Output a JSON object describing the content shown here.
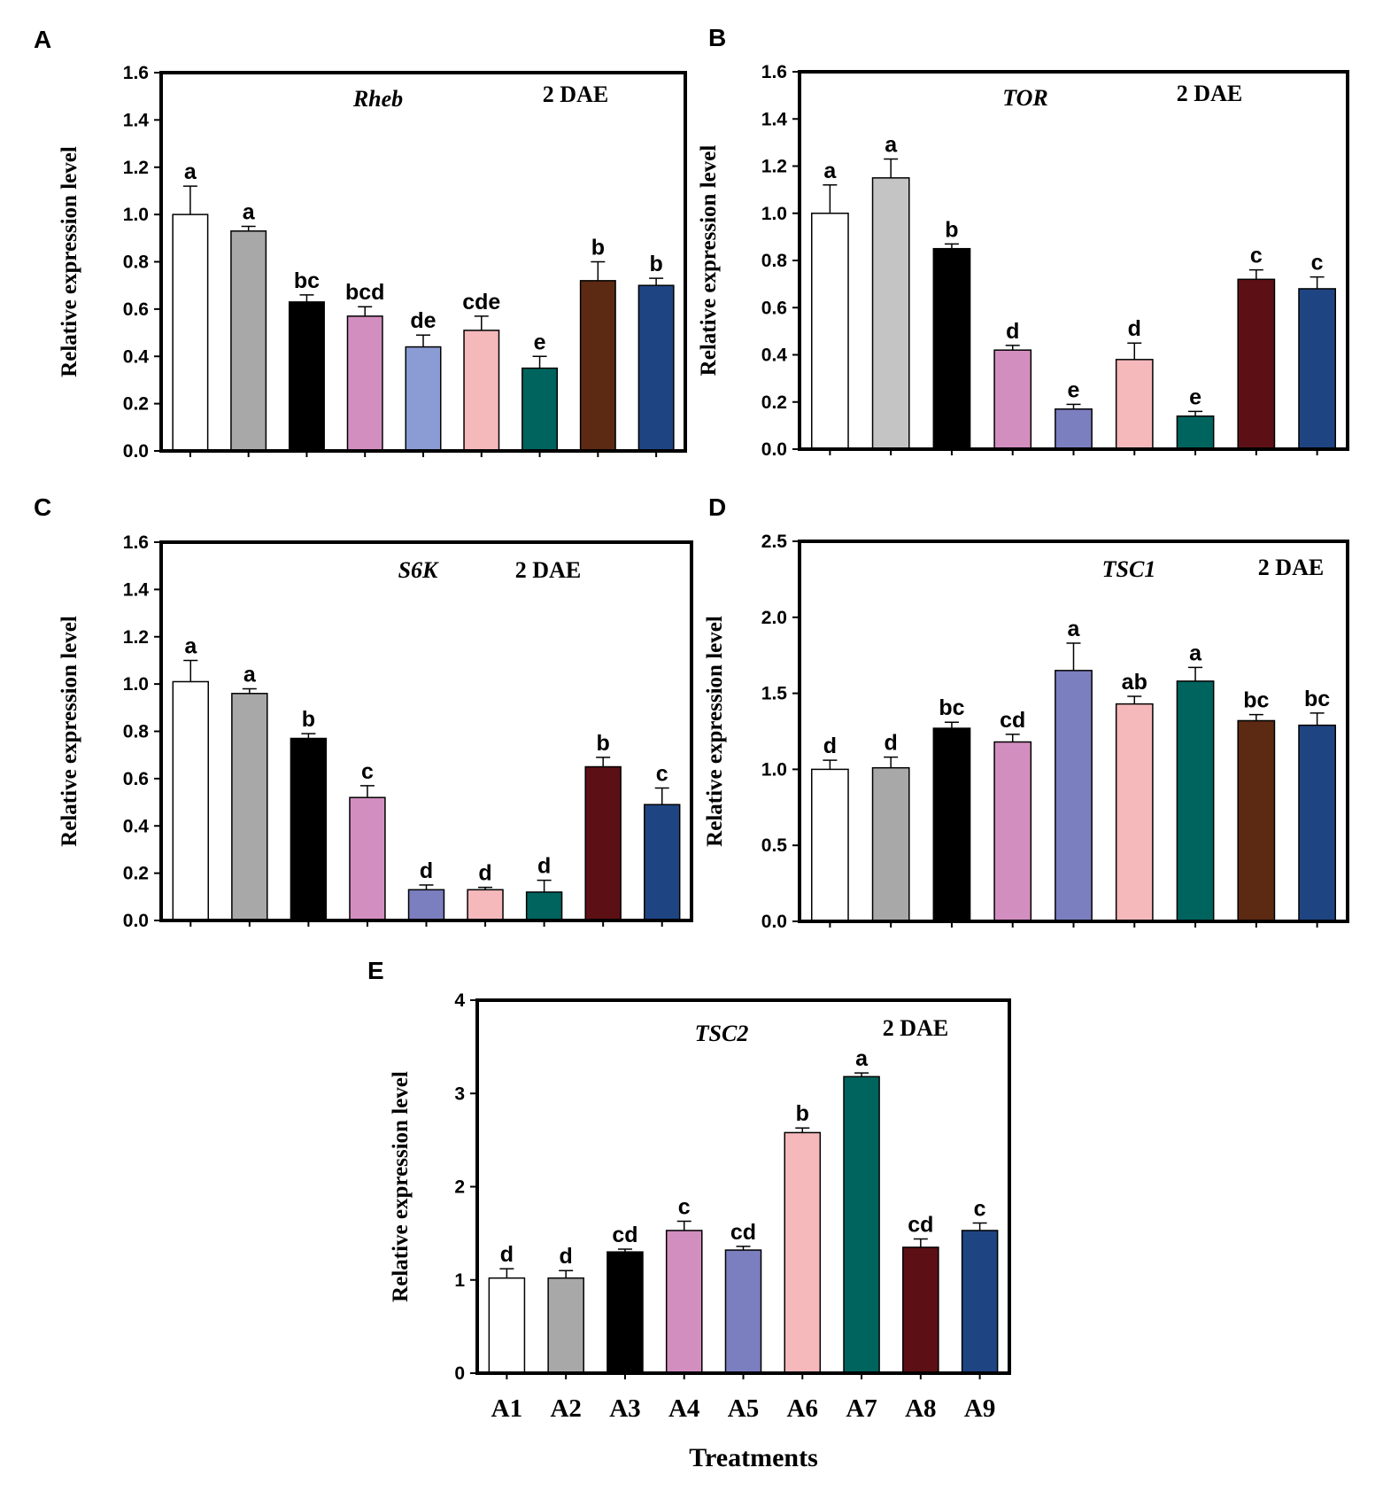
{
  "xlabel": "Treatments",
  "categories": [
    "A1",
    "A2",
    "A3",
    "A4",
    "A5",
    "A6",
    "A7",
    "A8",
    "A9"
  ],
  "chart_data": [
    {
      "type": "bar",
      "panel": "A",
      "title": "Rheb",
      "subtitle": "2 DAE",
      "ylabel": "Relative expression level",
      "ylim": [
        0,
        1.6
      ],
      "yticks": [
        "0.0",
        "0.2",
        "0.4",
        "0.6",
        "0.8",
        "1.0",
        "1.2",
        "1.4",
        "1.6"
      ],
      "values": [
        1.0,
        0.93,
        0.63,
        0.57,
        0.44,
        0.51,
        0.35,
        0.72,
        0.7
      ],
      "errors": [
        0.12,
        0.02,
        0.03,
        0.04,
        0.05,
        0.06,
        0.05,
        0.08,
        0.03
      ],
      "letters": [
        "a",
        "a",
        "bc",
        "bcd",
        "de",
        "cde",
        "e",
        "b",
        "b"
      ],
      "colors": [
        "#ffffff",
        "#a8a8a8",
        "#000000",
        "#d38ec0",
        "#8b9cd4",
        "#f5b8bb",
        "#00645e",
        "#5c2a12",
        "#1f4482"
      ]
    },
    {
      "type": "bar",
      "panel": "B",
      "title": "TOR",
      "subtitle": "2 DAE",
      "ylabel": "Relative expression level",
      "ylim": [
        0,
        1.6
      ],
      "yticks": [
        "0.0",
        "0.2",
        "0.4",
        "0.6",
        "0.8",
        "1.0",
        "1.2",
        "1.4",
        "1.6"
      ],
      "values": [
        1.0,
        1.15,
        0.85,
        0.42,
        0.17,
        0.38,
        0.14,
        0.72,
        0.68
      ],
      "errors": [
        0.12,
        0.08,
        0.02,
        0.02,
        0.02,
        0.07,
        0.02,
        0.04,
        0.05
      ],
      "letters": [
        "a",
        "a",
        "b",
        "d",
        "e",
        "d",
        "e",
        "c",
        "c"
      ],
      "colors": [
        "#ffffff",
        "#c4c4c4",
        "#000000",
        "#d38ec0",
        "#7b7fc0",
        "#f5b8bb",
        "#00645e",
        "#5c1015",
        "#1f4482"
      ]
    },
    {
      "type": "bar",
      "panel": "C",
      "title": "S6K",
      "subtitle": "2 DAE",
      "ylabel": "Relative expression level",
      "ylim": [
        0,
        1.6
      ],
      "yticks": [
        "0.0",
        "0.2",
        "0.4",
        "0.6",
        "0.8",
        "1.0",
        "1.2",
        "1.4",
        "1.6"
      ],
      "values": [
        1.01,
        0.96,
        0.77,
        0.52,
        0.13,
        0.13,
        0.12,
        0.65,
        0.49
      ],
      "errors": [
        0.09,
        0.02,
        0.02,
        0.05,
        0.02,
        0.01,
        0.05,
        0.04,
        0.07
      ],
      "letters": [
        "a",
        "a",
        "b",
        "c",
        "d",
        "d",
        "d",
        "b",
        "c"
      ],
      "colors": [
        "#ffffff",
        "#a8a8a8",
        "#000000",
        "#d38ec0",
        "#7b7fc0",
        "#f5b8bb",
        "#00645e",
        "#5c1015",
        "#1f4482"
      ]
    },
    {
      "type": "bar",
      "panel": "D",
      "title": "TSC1",
      "subtitle": "2 DAE",
      "ylabel": "Relative expression level",
      "ylim": [
        0,
        2.5
      ],
      "yticks": [
        "0.0",
        "0.5",
        "1.0",
        "1.5",
        "2.0",
        "2.5"
      ],
      "values": [
        1.0,
        1.01,
        1.27,
        1.18,
        1.65,
        1.43,
        1.58,
        1.32,
        1.29
      ],
      "errors": [
        0.06,
        0.07,
        0.04,
        0.05,
        0.18,
        0.05,
        0.09,
        0.04,
        0.08
      ],
      "letters": [
        "d",
        "d",
        "bc",
        "cd",
        "a",
        "ab",
        "a",
        "bc",
        "bc"
      ],
      "colors": [
        "#ffffff",
        "#a8a8a8",
        "#000000",
        "#d38ec0",
        "#7b7fc0",
        "#f5b8bb",
        "#00645e",
        "#5c2a12",
        "#1f4482"
      ]
    },
    {
      "type": "bar",
      "panel": "E",
      "title": "TSC2",
      "subtitle": "2 DAE",
      "ylabel": "Relative expression level",
      "ylim": [
        0,
        4
      ],
      "yticks": [
        "0",
        "1",
        "2",
        "3",
        "4"
      ],
      "values": [
        1.02,
        1.02,
        1.3,
        1.53,
        1.32,
        2.58,
        3.18,
        1.35,
        1.53
      ],
      "errors": [
        0.1,
        0.08,
        0.03,
        0.1,
        0.04,
        0.05,
        0.04,
        0.09,
        0.08
      ],
      "letters": [
        "d",
        "d",
        "cd",
        "c",
        "cd",
        "b",
        "a",
        "cd",
        "c"
      ],
      "colors": [
        "#ffffff",
        "#a8a8a8",
        "#000000",
        "#d38ec0",
        "#7b7fc0",
        "#f5b8bb",
        "#00645e",
        "#5c1015",
        "#1f4482"
      ]
    }
  ]
}
